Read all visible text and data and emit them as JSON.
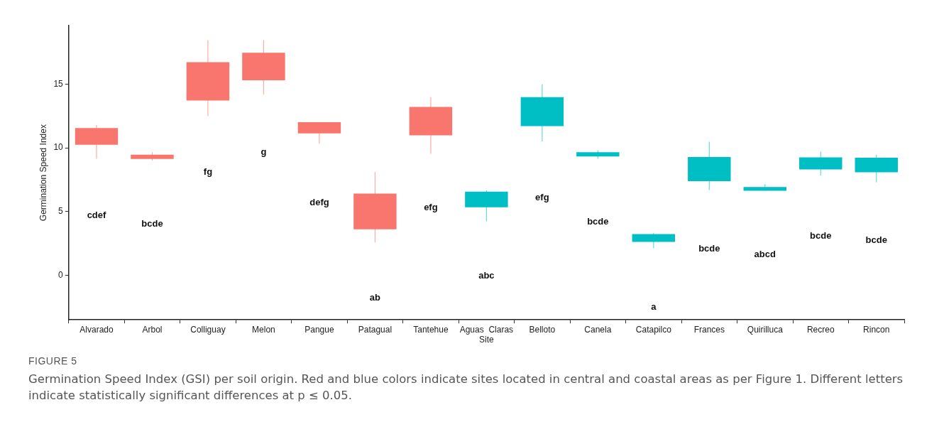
{
  "chart_data": {
    "type": "candlestick",
    "xlabel": "Site",
    "ylabel": "Germination Speed Index",
    "categories": [
      "Alvarado",
      "Arbol",
      "Colliguay",
      "Melon",
      "Pangue",
      "Patagual",
      "Tantehue",
      "Aguas  Claras",
      "Belloto",
      "Canela",
      "Catapilco",
      "Frances",
      "Quirilluca",
      "Recreo",
      "Rincon"
    ],
    "ohlc": [
      [
        10.25,
        11.8,
        9.15,
        11.56
      ],
      [
        9.13,
        9.66,
        9.0,
        9.47
      ],
      [
        13.71,
        18.46,
        12.49,
        16.73
      ],
      [
        15.31,
        18.46,
        14.2,
        17.47
      ],
      [
        11.14,
        12.02,
        10.33,
        12.02
      ],
      [
        3.61,
        8.1,
        2.57,
        6.41
      ],
      [
        10.99,
        13.98,
        9.54,
        13.22
      ],
      [
        5.34,
        6.66,
        4.24,
        6.56
      ],
      [
        11.71,
        15.0,
        10.51,
        13.98
      ],
      [
        9.32,
        9.81,
        9.15,
        9.66
      ],
      [
        2.62,
        3.33,
        2.13,
        3.23
      ],
      [
        7.38,
        10.48,
        6.69,
        9.28
      ],
      [
        6.64,
        7.17,
        6.64,
        6.92
      ],
      [
        8.31,
        9.72,
        7.83,
        9.26
      ],
      [
        8.08,
        9.47,
        7.3,
        9.22
      ]
    ],
    "colors": [
      "#f8766d",
      "#f8766d",
      "#f8766d",
      "#f8766d",
      "#f8766d",
      "#f8766d",
      "#f8766d",
      "#00bfc4",
      "#00bfc4",
      "#00bfc4",
      "#00bfc4",
      "#00bfc4",
      "#00bfc4",
      "#00bfc4",
      "#00bfc4"
    ],
    "ylim": [
      -3.5,
      19.6
    ],
    "yticks": [
      0,
      5,
      10,
      15
    ],
    "grid": false,
    "legend": false,
    "annotations": [
      "cdef",
      "bcde",
      "fg",
      "g",
      "defg",
      "ab",
      "efg",
      "abc",
      "efg",
      "bcde",
      "a",
      "bcde",
      "abcd",
      "bcde",
      "bcde",
      "FIGURE 5",
      "Germination Speed Index (GSI) per soil origin. Red and blue colors indicate sites located in central and coastal areas as per Figure 1. Different letters indicate statistically significant differences at p ≤ 0.05."
    ]
  }
}
